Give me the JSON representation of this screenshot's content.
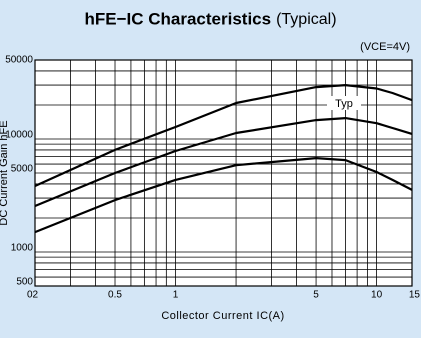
{
  "chart_data": {
    "type": "line",
    "title": "hFE−IC Characteristics",
    "subtitle": "(Typical)",
    "x_label": "Collector Current IC(A)",
    "y_label": "DC Current Gain hFE",
    "annotations": [
      "(VCE=4V)",
      "Typ"
    ],
    "log_x": true,
    "log_y": true,
    "grid": true,
    "xlim": [
      0.2,
      15
    ],
    "ylim": [
      500,
      50000
    ],
    "xticks": [
      {
        "value": 0.2,
        "label": "02"
      },
      0.5,
      1,
      5,
      10,
      15
    ],
    "yticks": [
      500,
      1000,
      5000,
      10000,
      50000
    ],
    "xgrid": [
      0.3,
      0.4,
      0.6,
      0.7,
      0.8,
      0.9,
      2,
      3,
      4,
      6,
      7,
      8,
      9
    ],
    "ygrid": [
      600,
      700,
      800,
      900,
      2000,
      3000,
      4000,
      6000,
      7000,
      8000,
      9000,
      20000,
      30000,
      40000
    ],
    "x": [
      0.2,
      0.5,
      1,
      2,
      5,
      7,
      10,
      12,
      15
    ],
    "series": [
      {
        "color": "#000000",
        "values": [
          3840,
          8000,
          12770,
          20800,
          28800,
          30000,
          28000,
          25500,
          22100
        ]
      },
      {
        "color": "#000000",
        "values": [
          2550,
          5000,
          7830,
          11300,
          14700,
          15300,
          13800,
          12500,
          11100
        ]
      },
      {
        "color": "#000000",
        "values": [
          1500,
          2880,
          4340,
          5860,
          6770,
          6500,
          5100,
          4340,
          3540
        ]
      }
    ]
  }
}
